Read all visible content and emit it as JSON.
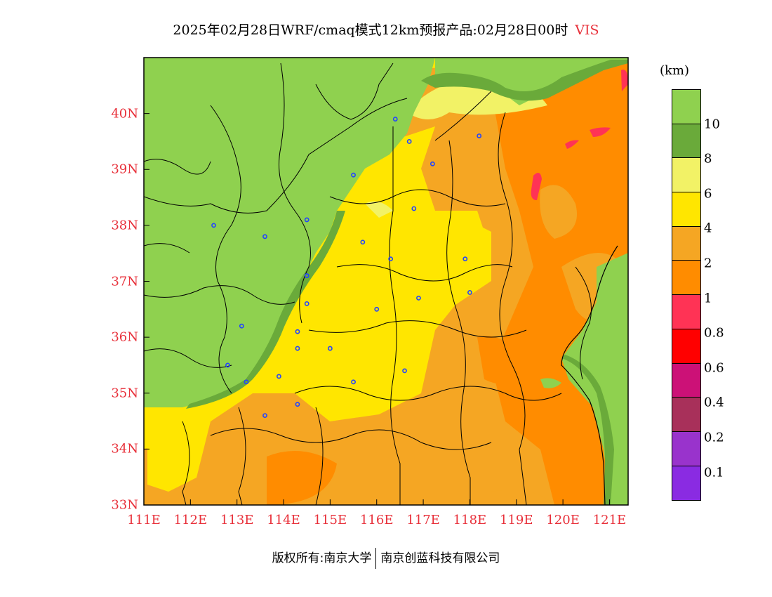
{
  "title": {
    "text": "2025年02月28日WRF/cmaq模式12km预报产品:02月28日00时",
    "variable": "VIS"
  },
  "axes": {
    "lat_labels": [
      "40N",
      "39N",
      "38N",
      "37N",
      "36N",
      "35N",
      "34N",
      "33N"
    ],
    "lat_values": [
      40,
      39,
      38,
      37,
      36,
      35,
      34,
      33
    ],
    "lon_labels": [
      "111E",
      "112E",
      "113E",
      "114E",
      "115E",
      "116E",
      "117E",
      "118E",
      "119E",
      "120E",
      "121E"
    ],
    "lon_values": [
      111,
      112,
      113,
      114,
      115,
      116,
      117,
      118,
      119,
      120,
      121
    ],
    "lat_range": [
      33,
      41.0
    ],
    "lon_range": [
      111,
      121.4
    ]
  },
  "colorbar": {
    "unit": "(km)",
    "colors": [
      "#8fd14f",
      "#6aaa3a",
      "#f2f266",
      "#ffe600",
      "#f5a623",
      "#ff8c00",
      "#ff3355",
      "#ff0000",
      "#cc1177",
      "#a8305a",
      "#9933cc",
      "#8a2be2"
    ],
    "labels": [
      "10",
      "8",
      "6",
      "4",
      "2",
      "1",
      "0.8",
      "0.6",
      "0.4",
      "0.2",
      "0.1"
    ]
  },
  "stations": [
    [
      116.4,
      39.9
    ],
    [
      116.7,
      39.5
    ],
    [
      117.2,
      39.1
    ],
    [
      118.2,
      39.6
    ],
    [
      115.5,
      38.9
    ],
    [
      116.8,
      38.3
    ],
    [
      114.5,
      38.1
    ],
    [
      112.5,
      38.0
    ],
    [
      113.6,
      37.8
    ],
    [
      115.7,
      37.7
    ],
    [
      116.3,
      37.4
    ],
    [
      117.9,
      37.4
    ],
    [
      114.5,
      37.1
    ],
    [
      118.0,
      36.8
    ],
    [
      116.9,
      36.7
    ],
    [
      114.5,
      36.6
    ],
    [
      116.0,
      36.5
    ],
    [
      113.1,
      36.2
    ],
    [
      114.3,
      36.1
    ],
    [
      115.0,
      35.8
    ],
    [
      114.3,
      35.8
    ],
    [
      112.8,
      35.5
    ],
    [
      116.6,
      35.4
    ],
    [
      113.9,
      35.3
    ],
    [
      113.2,
      35.2
    ],
    [
      115.5,
      35.2
    ],
    [
      114.3,
      34.8
    ],
    [
      113.6,
      34.6
    ]
  ],
  "footer": {
    "left": "版权所有:南京大学",
    "right": "南京创蓝科技有限公司"
  }
}
